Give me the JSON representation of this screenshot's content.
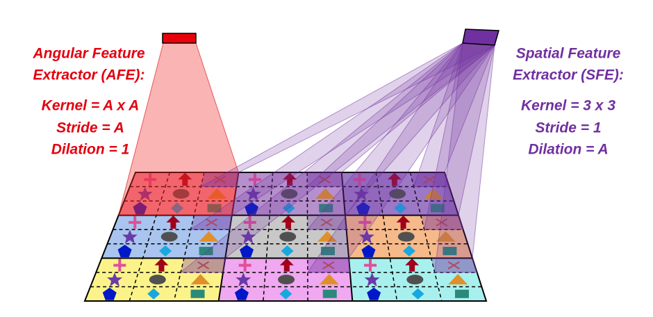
{
  "afe": {
    "title": [
      "Angular Feature",
      "Extractor (AFE):"
    ],
    "params": [
      "Kernel = A x A",
      "Stride = A",
      "Dilation = 1"
    ]
  },
  "sfe": {
    "title": [
      "Spatial Feature",
      "Extractor (SFE):"
    ],
    "params": [
      "Kernel = 3 x 3",
      "Stride = 1",
      "Dilation = A"
    ]
  }
}
